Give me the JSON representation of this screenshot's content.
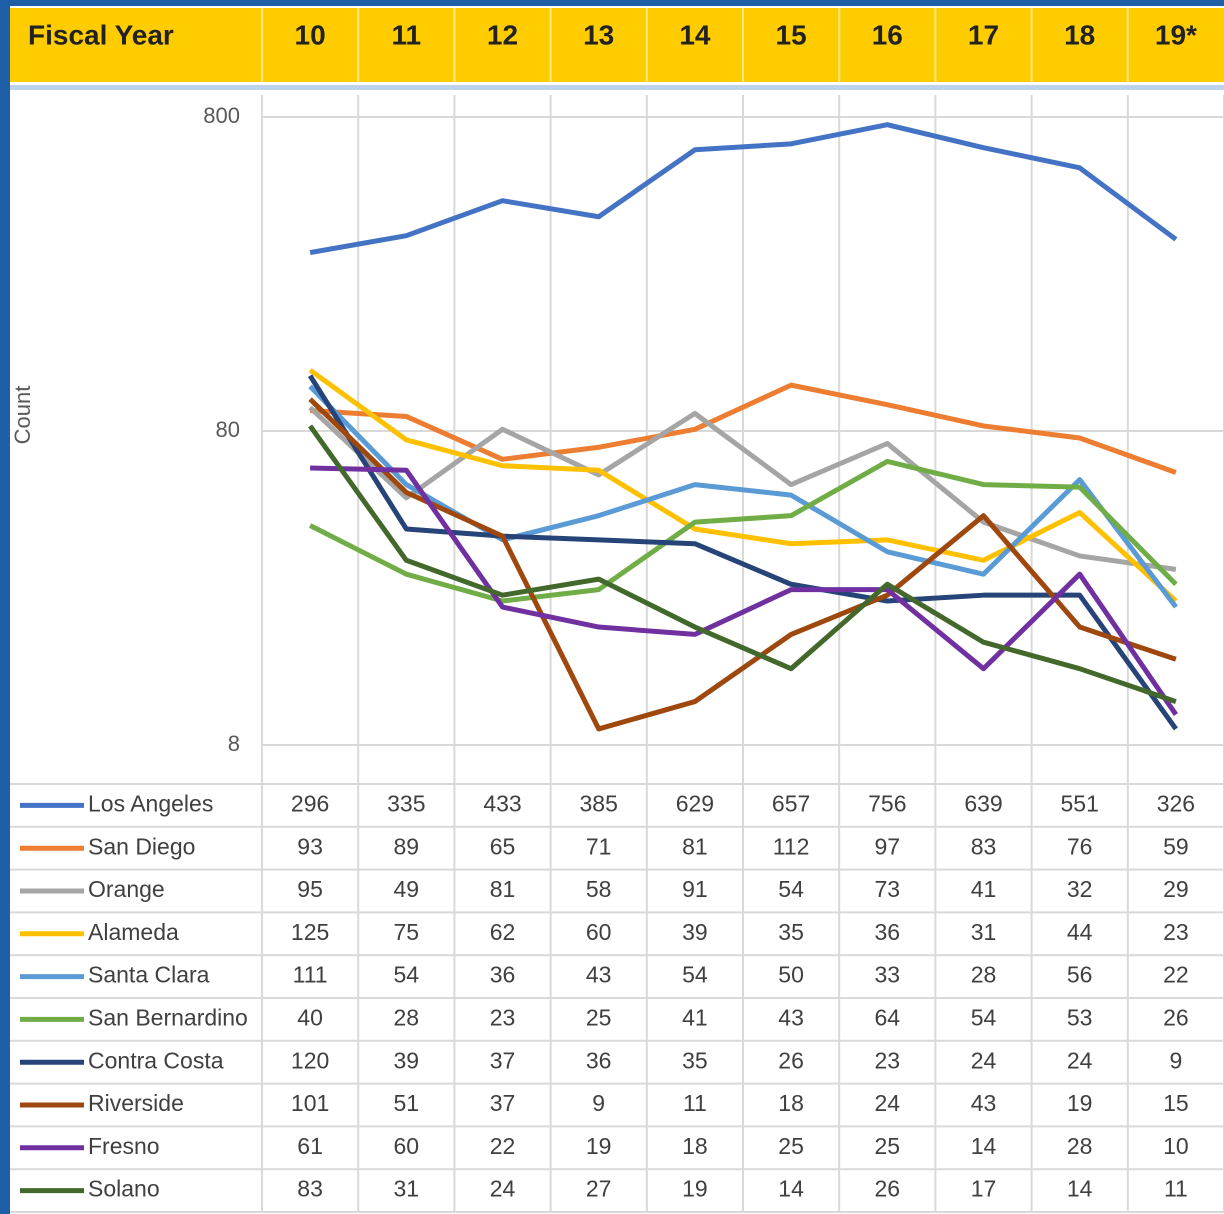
{
  "chart_data": {
    "type": "line",
    "header": "Fiscal Year",
    "y_label": "Count",
    "categories": [
      "10",
      "11",
      "12",
      "13",
      "14",
      "15",
      "16",
      "17",
      "18",
      "19*"
    ],
    "log_scale": true,
    "ylim": [
      8,
      800
    ],
    "yticks": [
      8,
      80,
      800
    ],
    "grid": true,
    "series": [
      {
        "name": "Los Angeles",
        "color": "#4472c4",
        "values": [
          296,
          335,
          433,
          385,
          629,
          657,
          756,
          639,
          551,
          326
        ]
      },
      {
        "name": "San Diego",
        "color": "#ed7d31",
        "values": [
          93,
          89,
          65,
          71,
          81,
          112,
          97,
          83,
          76,
          59
        ]
      },
      {
        "name": "Orange",
        "color": "#a5a5a5",
        "values": [
          95,
          49,
          81,
          58,
          91,
          54,
          73,
          41,
          32,
          29
        ]
      },
      {
        "name": "Alameda",
        "color": "#ffc000",
        "values": [
          125,
          75,
          62,
          60,
          39,
          35,
          36,
          31,
          44,
          23
        ]
      },
      {
        "name": "Santa Clara",
        "color": "#5b9bd5",
        "values": [
          111,
          54,
          36,
          43,
          54,
          50,
          33,
          28,
          56,
          22
        ]
      },
      {
        "name": "San Bernardino",
        "color": "#70ad47",
        "values": [
          40,
          28,
          23,
          25,
          41,
          43,
          64,
          54,
          53,
          26
        ]
      },
      {
        "name": "Contra Costa",
        "color": "#264478",
        "values": [
          120,
          39,
          37,
          36,
          35,
          26,
          23,
          24,
          24,
          9
        ]
      },
      {
        "name": "Riverside",
        "color": "#9e480e",
        "values": [
          101,
          51,
          37,
          9,
          11,
          18,
          24,
          43,
          19,
          15
        ]
      },
      {
        "name": "Fresno",
        "color": "#7030a0",
        "values": [
          61,
          60,
          22,
          19,
          18,
          25,
          25,
          14,
          28,
          10
        ]
      },
      {
        "name": "Solano",
        "color": "#43682b",
        "values": [
          83,
          31,
          24,
          27,
          19,
          14,
          26,
          17,
          14,
          11
        ]
      }
    ]
  }
}
